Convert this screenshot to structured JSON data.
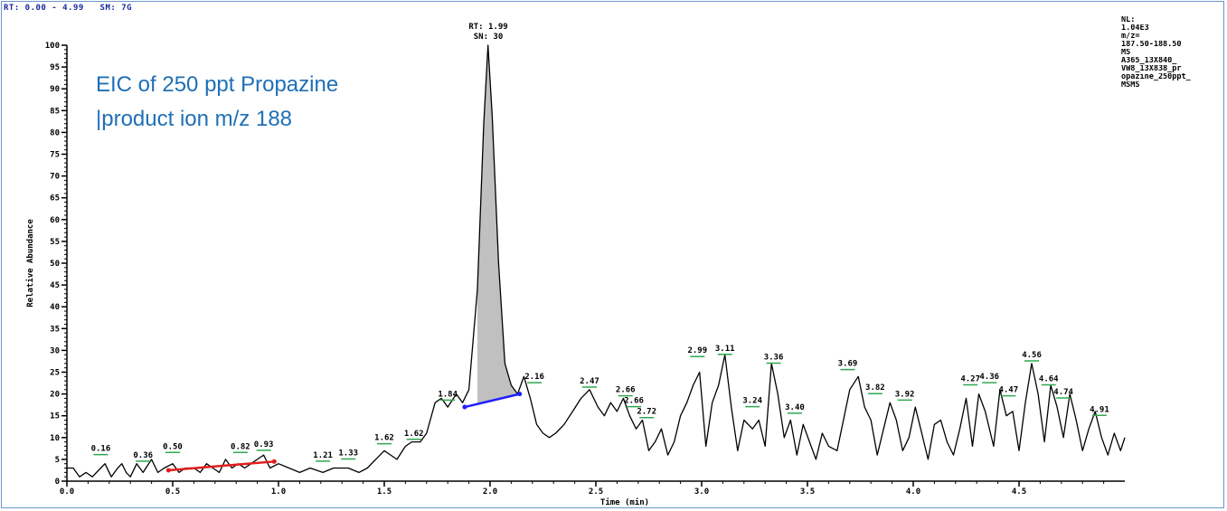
{
  "header": {
    "rt_range": "RT: 0.00 - 4.99",
    "sm": "SM: 7G"
  },
  "overlay": {
    "line1": "EIC of 250 ppt Propazine",
    "line2": "|product ion m/z 188"
  },
  "info_panel": {
    "lines": [
      "NL:",
      "1.04E3",
      "m/z=",
      "187.50-188.50",
      "MS",
      "A365_13X840_",
      "VW8_13X838_pr",
      "opazine_250ppt_",
      "MSMS"
    ]
  },
  "main_peak_label": {
    "rt": "RT: 1.99",
    "sn": "SN: 30"
  },
  "chart_data": {
    "type": "line",
    "title": "",
    "xlabel": "Time (min)",
    "ylabel": "Relative Abundance",
    "xlim": [
      0.0,
      5.0
    ],
    "ylim": [
      0,
      100
    ],
    "x_ticks": [
      "0.0",
      "0.5",
      "1.0",
      "1.5",
      "2.0",
      "2.5",
      "3.0",
      "3.5",
      "4.0",
      "4.5"
    ],
    "y_ticks": [
      "0",
      "5",
      "10",
      "15",
      "20",
      "25",
      "30",
      "35",
      "40",
      "45",
      "50",
      "55",
      "60",
      "65",
      "70",
      "75",
      "80",
      "85",
      "90",
      "95",
      "100"
    ],
    "series": [
      {
        "points": [
          [
            0.0,
            3
          ],
          [
            0.03,
            3
          ],
          [
            0.06,
            1
          ],
          [
            0.09,
            2
          ],
          [
            0.12,
            1
          ],
          [
            0.16,
            3
          ],
          [
            0.18,
            4
          ],
          [
            0.21,
            1
          ],
          [
            0.24,
            3
          ],
          [
            0.26,
            4
          ],
          [
            0.28,
            2
          ],
          [
            0.3,
            1
          ],
          [
            0.33,
            4
          ],
          [
            0.36,
            2
          ],
          [
            0.4,
            5
          ],
          [
            0.43,
            2
          ],
          [
            0.46,
            3
          ],
          [
            0.5,
            4
          ],
          [
            0.53,
            2
          ],
          [
            0.56,
            3
          ],
          [
            0.6,
            3
          ],
          [
            0.63,
            2
          ],
          [
            0.66,
            4
          ],
          [
            0.69,
            3
          ],
          [
            0.72,
            2
          ],
          [
            0.75,
            5
          ],
          [
            0.78,
            3
          ],
          [
            0.81,
            4
          ],
          [
            0.84,
            3
          ],
          [
            0.87,
            4
          ],
          [
            0.9,
            5
          ],
          [
            0.93,
            6
          ],
          [
            0.96,
            3
          ],
          [
            1.0,
            4
          ],
          [
            1.05,
            3
          ],
          [
            1.1,
            2
          ],
          [
            1.15,
            3
          ],
          [
            1.21,
            2
          ],
          [
            1.26,
            3
          ],
          [
            1.33,
            3
          ],
          [
            1.38,
            2
          ],
          [
            1.42,
            3
          ],
          [
            1.46,
            5
          ],
          [
            1.5,
            7
          ],
          [
            1.53,
            6
          ],
          [
            1.56,
            5
          ],
          [
            1.6,
            8
          ],
          [
            1.63,
            9
          ],
          [
            1.67,
            9
          ],
          [
            1.7,
            11
          ],
          [
            1.74,
            18
          ],
          [
            1.77,
            19
          ],
          [
            1.8,
            17
          ],
          [
            1.84,
            20
          ],
          [
            1.87,
            18
          ],
          [
            1.9,
            21
          ],
          [
            1.94,
            44
          ],
          [
            1.97,
            82
          ],
          [
            1.99,
            100
          ],
          [
            2.01,
            84
          ],
          [
            2.04,
            50
          ],
          [
            2.07,
            27
          ],
          [
            2.1,
            22
          ],
          [
            2.13,
            20
          ],
          [
            2.16,
            24
          ],
          [
            2.19,
            19
          ],
          [
            2.22,
            13
          ],
          [
            2.25,
            11
          ],
          [
            2.28,
            10
          ],
          [
            2.31,
            11
          ],
          [
            2.35,
            13
          ],
          [
            2.39,
            16
          ],
          [
            2.43,
            19
          ],
          [
            2.47,
            21
          ],
          [
            2.51,
            17
          ],
          [
            2.54,
            15
          ],
          [
            2.57,
            18
          ],
          [
            2.6,
            16
          ],
          [
            2.63,
            19
          ],
          [
            2.66,
            15
          ],
          [
            2.69,
            12
          ],
          [
            2.72,
            14
          ],
          [
            2.75,
            7
          ],
          [
            2.78,
            9
          ],
          [
            2.81,
            12
          ],
          [
            2.84,
            6
          ],
          [
            2.87,
            9
          ],
          [
            2.9,
            15
          ],
          [
            2.93,
            18
          ],
          [
            2.96,
            22
          ],
          [
            2.99,
            25
          ],
          [
            3.02,
            8
          ],
          [
            3.05,
            18
          ],
          [
            3.08,
            22
          ],
          [
            3.11,
            29
          ],
          [
            3.14,
            17
          ],
          [
            3.17,
            7
          ],
          [
            3.2,
            14
          ],
          [
            3.24,
            12
          ],
          [
            3.27,
            14
          ],
          [
            3.3,
            8
          ],
          [
            3.33,
            27
          ],
          [
            3.36,
            20
          ],
          [
            3.39,
            10
          ],
          [
            3.42,
            14
          ],
          [
            3.45,
            6
          ],
          [
            3.48,
            13
          ],
          [
            3.51,
            9
          ],
          [
            3.54,
            5
          ],
          [
            3.57,
            11
          ],
          [
            3.6,
            8
          ],
          [
            3.64,
            7
          ],
          [
            3.67,
            14
          ],
          [
            3.7,
            21
          ],
          [
            3.74,
            24
          ],
          [
            3.77,
            17
          ],
          [
            3.8,
            14
          ],
          [
            3.83,
            6
          ],
          [
            3.86,
            12
          ],
          [
            3.89,
            18
          ],
          [
            3.92,
            14
          ],
          [
            3.95,
            7
          ],
          [
            3.98,
            10
          ],
          [
            4.01,
            17
          ],
          [
            4.04,
            11
          ],
          [
            4.07,
            5
          ],
          [
            4.1,
            13
          ],
          [
            4.13,
            14
          ],
          [
            4.16,
            9
          ],
          [
            4.19,
            6
          ],
          [
            4.22,
            12
          ],
          [
            4.25,
            19
          ],
          [
            4.28,
            8
          ],
          [
            4.31,
            20
          ],
          [
            4.34,
            16
          ],
          [
            4.38,
            8
          ],
          [
            4.41,
            21
          ],
          [
            4.44,
            15
          ],
          [
            4.47,
            16
          ],
          [
            4.5,
            7
          ],
          [
            4.53,
            18
          ],
          [
            4.56,
            27
          ],
          [
            4.59,
            20
          ],
          [
            4.62,
            9
          ],
          [
            4.65,
            22
          ],
          [
            4.68,
            17
          ],
          [
            4.71,
            10
          ],
          [
            4.74,
            20
          ],
          [
            4.77,
            14
          ],
          [
            4.8,
            7
          ],
          [
            4.83,
            12
          ],
          [
            4.86,
            16
          ],
          [
            4.89,
            10
          ],
          [
            4.92,
            6
          ],
          [
            4.95,
            11
          ],
          [
            4.98,
            7
          ],
          [
            5.0,
            10
          ]
        ]
      }
    ],
    "peak_fill": {
      "x_start": 1.94,
      "x_end": 2.13,
      "color": "#c0c0c0"
    },
    "baselines": [
      {
        "color": "#1e1eff",
        "points": [
          [
            1.88,
            17
          ],
          [
            2.14,
            20
          ]
        ]
      },
      {
        "color": "#e01e1e",
        "points": [
          [
            0.48,
            2.5
          ],
          [
            0.98,
            4.5
          ]
        ]
      }
    ],
    "annotations": [
      {
        "text": "0.16",
        "x": 0.16,
        "y": 6.5
      },
      {
        "text": "0.36",
        "x": 0.36,
        "y": 5.0
      },
      {
        "text": "0.50",
        "x": 0.5,
        "y": 7.0
      },
      {
        "text": "0.82",
        "x": 0.82,
        "y": 7.0
      },
      {
        "text": "0.93",
        "x": 0.93,
        "y": 7.5
      },
      {
        "text": "1.21",
        "x": 1.21,
        "y": 5.0
      },
      {
        "text": "1.33",
        "x": 1.33,
        "y": 5.5
      },
      {
        "text": "1.62",
        "x": 1.5,
        "y": 9.0
      },
      {
        "text": "1.62",
        "x": 1.64,
        "y": 10.0
      },
      {
        "text": "1.84",
        "x": 1.8,
        "y": 19.0
      },
      {
        "text": "2.16",
        "x": 2.21,
        "y": 23.0
      },
      {
        "text": "2.47",
        "x": 2.47,
        "y": 22.0
      },
      {
        "text": "2.66",
        "x": 2.64,
        "y": 20.0
      },
      {
        "text": "2.66",
        "x": 2.68,
        "y": 17.5
      },
      {
        "text": "2.72",
        "x": 2.74,
        "y": 15.0
      },
      {
        "text": "2.99",
        "x": 2.98,
        "y": 29.0
      },
      {
        "text": "3.11",
        "x": 3.11,
        "y": 29.5
      },
      {
        "text": "3.24",
        "x": 3.24,
        "y": 17.5
      },
      {
        "text": "3.36",
        "x": 3.34,
        "y": 27.5
      },
      {
        "text": "3.40",
        "x": 3.44,
        "y": 16.0
      },
      {
        "text": "3.69",
        "x": 3.69,
        "y": 26.0
      },
      {
        "text": "3.82",
        "x": 3.82,
        "y": 20.5
      },
      {
        "text": "3.92",
        "x": 3.96,
        "y": 19.0
      },
      {
        "text": "4.27",
        "x": 4.27,
        "y": 22.5
      },
      {
        "text": "4.36",
        "x": 4.36,
        "y": 23.0
      },
      {
        "text": "4.47",
        "x": 4.45,
        "y": 20.0
      },
      {
        "text": "4.56",
        "x": 4.56,
        "y": 28.0
      },
      {
        "text": "4.64",
        "x": 4.64,
        "y": 22.5
      },
      {
        "text": "4.74",
        "x": 4.71,
        "y": 19.5
      },
      {
        "text": "4.91",
        "x": 4.88,
        "y": 15.5
      }
    ],
    "grid": false,
    "legend": "none",
    "line_color": "#000000"
  }
}
